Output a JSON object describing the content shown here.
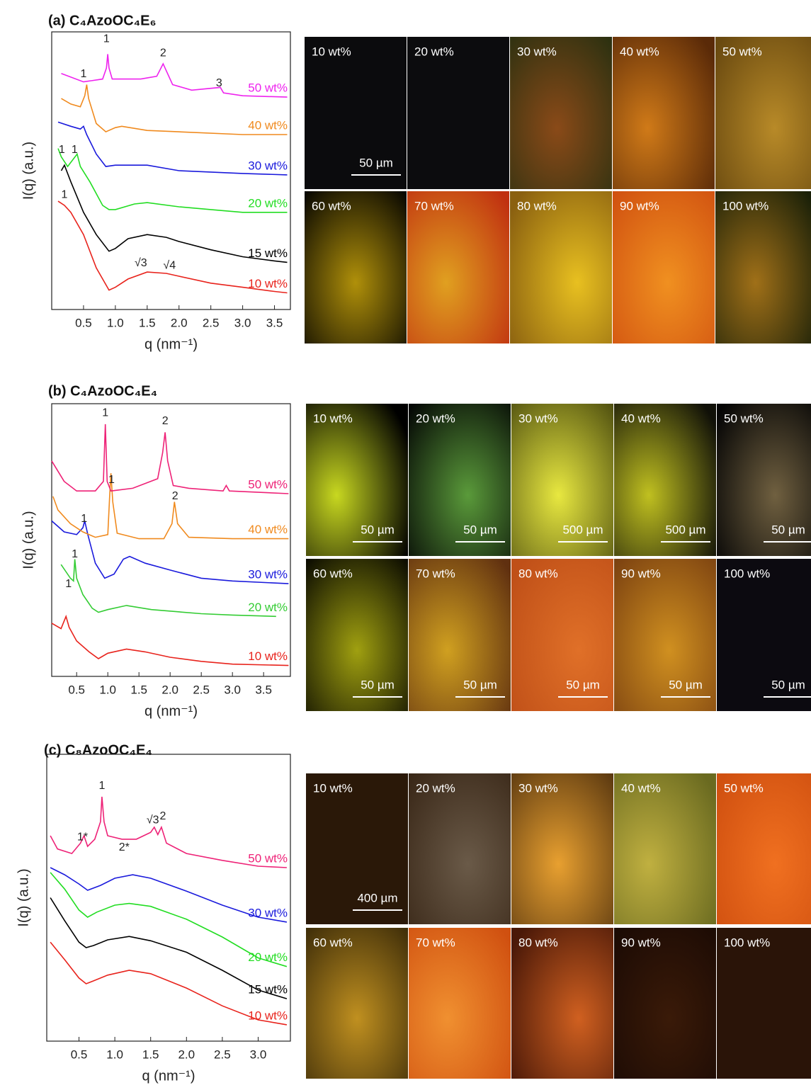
{
  "chart_data": [
    {
      "type": "line",
      "title": "(a) C₄AzoOC₄E₆",
      "x_label": "q (nm⁻¹)",
      "y_label": "I(q) (a.u.)",
      "xlim": [
        0,
        3.75
      ],
      "ylim": [
        0,
        100
      ],
      "xticks": [
        0.5,
        {
          "value": 1,
          "label": "1.0"
        },
        1.5,
        {
          "value": 2,
          "label": "2.0"
        },
        2.5,
        {
          "value": 3,
          "label": "3.0"
        },
        3.5
      ],
      "series": [
        {
          "name": "10 wt%",
          "color": "#e8231c",
          "x": [
            0.1,
            0.2,
            0.3,
            0.5,
            0.7,
            0.9,
            1.0,
            1.2,
            1.5,
            1.8,
            2.0,
            2.5,
            3.0,
            3.5,
            3.7
          ],
          "values": [
            39,
            37.5,
            35,
            27,
            15,
            7,
            8,
            11,
            13.5,
            13,
            12,
            9.5,
            8,
            6.5,
            6
          ]
        },
        {
          "name": "15 wt%",
          "color": "#000000",
          "x": [
            0.15,
            0.2,
            0.3,
            0.5,
            0.7,
            0.9,
            1.0,
            1.2,
            1.5,
            1.8,
            2.0,
            2.5,
            3.0,
            3.5,
            3.7
          ],
          "values": [
            50,
            52,
            46,
            35,
            27,
            21,
            22,
            25.5,
            27,
            26,
            24.5,
            21.5,
            19,
            17.5,
            17
          ]
        },
        {
          "name": "20 wt%",
          "color": "#22dd22",
          "x": [
            0.1,
            0.15,
            0.25,
            0.4,
            0.45,
            0.6,
            0.8,
            0.9,
            1.0,
            1.3,
            1.5,
            2.0,
            2.5,
            3.0,
            3.7
          ],
          "values": [
            58,
            55,
            51.5,
            56,
            51.5,
            46,
            37.5,
            36,
            36,
            38,
            38.5,
            37,
            36,
            35,
            35
          ]
        },
        {
          "name": "30 wt%",
          "color": "#1a1adc",
          "x": [
            0.1,
            0.3,
            0.45,
            0.5,
            0.55,
            0.7,
            0.85,
            1.0,
            1.5,
            2.0,
            3.0,
            3.7
          ],
          "values": [
            67.5,
            66,
            65,
            66,
            63,
            56,
            51.5,
            52,
            52,
            50,
            49,
            48.5
          ]
        },
        {
          "name": "40 wt%",
          "color": "#f08a1e",
          "x": [
            0.15,
            0.3,
            0.45,
            0.52,
            0.55,
            0.58,
            0.7,
            0.85,
            1.0,
            1.1,
            1.5,
            2.0,
            3.0,
            3.7
          ],
          "values": [
            76,
            74,
            73,
            77,
            81,
            76,
            67,
            64,
            65.5,
            66,
            64.5,
            64,
            63,
            63
          ]
        },
        {
          "name": "50 wt%",
          "color": "#ee22ee",
          "x": [
            0.15,
            0.5,
            0.8,
            0.86,
            0.88,
            0.9,
            0.95,
            1.4,
            1.65,
            1.75,
            1.8,
            1.9,
            2.2,
            2.65,
            2.7,
            3.0,
            3.7
          ],
          "values": [
            85,
            82,
            83,
            87,
            92,
            87,
            83,
            83,
            84,
            88.5,
            86,
            81,
            79,
            80,
            78,
            77,
            76.5
          ]
        }
      ],
      "annotations": [
        {
          "text": "1",
          "x": 0.86,
          "y": 97.4
        },
        {
          "text": "2",
          "x": 1.75,
          "y": 92.3
        },
        {
          "text": "3",
          "x": 2.63,
          "y": 81.4
        },
        {
          "text": "1",
          "x": 0.5,
          "y": 84.7
        },
        {
          "text": "1",
          "x": 0.16,
          "y": 57.4
        },
        {
          "text": "1",
          "x": 0.36,
          "y": 57.4
        },
        {
          "text": "1",
          "x": 0.2,
          "y": 41.3
        },
        {
          "text": "√3",
          "x": 1.4,
          "y": 16.6
        },
        {
          "text": "√4",
          "x": 1.85,
          "y": 15.8
        }
      ]
    },
    {
      "type": "line",
      "title": "(b) C₄AzoOC₄E₄",
      "x_label": "q (nm⁻¹)",
      "y_label": "I(q) (a.u.)",
      "xlim": [
        0.1,
        3.93
      ],
      "ylim": [
        0,
        100
      ],
      "xticks": [
        0.5,
        {
          "value": 1,
          "label": "1.0"
        },
        1.5,
        {
          "value": 2,
          "label": "2.0"
        },
        2.5,
        {
          "value": 3,
          "label": "3.0"
        },
        3.5
      ],
      "series": [
        {
          "name": "10 wt%",
          "color": "#e8231c",
          "x": [
            0.1,
            0.25,
            0.33,
            0.38,
            0.5,
            0.7,
            0.85,
            1.0,
            1.3,
            1.6,
            2.0,
            2.5,
            3.0,
            3.9
          ],
          "values": [
            19.5,
            17.5,
            22,
            18,
            13,
            9,
            6.5,
            8.5,
            10,
            9,
            7,
            5.5,
            4.5,
            4
          ]
        },
        {
          "name": "20 wt%",
          "color": "#33cc33",
          "x": [
            0.25,
            0.4,
            0.45,
            0.47,
            0.5,
            0.6,
            0.75,
            0.85,
            1.0,
            1.3,
            1.7,
            2.5,
            3.0,
            3.7
          ],
          "values": [
            41,
            36,
            35,
            43,
            36,
            30,
            25,
            23.5,
            24.5,
            26,
            24.5,
            23,
            22.5,
            22
          ]
        },
        {
          "name": "30 wt%",
          "color": "#1a1adc",
          "x": [
            0.1,
            0.3,
            0.5,
            0.6,
            0.63,
            0.68,
            0.8,
            0.95,
            1.1,
            1.25,
            1.35,
            1.6,
            2.0,
            2.5,
            3.0,
            3.9
          ],
          "values": [
            57,
            53,
            52,
            54.5,
            57,
            52,
            41.5,
            36,
            37.5,
            43,
            44,
            41.5,
            39,
            36,
            35,
            34
          ]
        },
        {
          "name": "40 wt%",
          "color": "#f08a1e",
          "x": [
            0.12,
            0.2,
            0.4,
            0.6,
            0.8,
            1.0,
            1.03,
            1.05,
            1.08,
            1.15,
            1.5,
            1.9,
            2.03,
            2.07,
            2.12,
            2.3,
            3.0,
            3.9
          ],
          "values": [
            66,
            61,
            56,
            53,
            51,
            52,
            66,
            74.5,
            64,
            52.5,
            50.5,
            50.5,
            56,
            64,
            56,
            51,
            50.5,
            50.5
          ]
        },
        {
          "name": "50 wt%",
          "color": "#ee2277",
          "x": [
            0.1,
            0.3,
            0.5,
            0.8,
            0.93,
            0.96,
            0.99,
            1.05,
            1.4,
            1.8,
            1.88,
            1.92,
            1.96,
            2.05,
            2.3,
            2.85,
            2.9,
            2.95,
            3.9
          ],
          "values": [
            79,
            71.5,
            68,
            68,
            71.5,
            92.5,
            71.5,
            68,
            69,
            72.5,
            82,
            89.5,
            79,
            70,
            69,
            68,
            70,
            68,
            67
          ]
        }
      ],
      "annotations": [
        {
          "text": "1",
          "x": 0.96,
          "y": 96.6
        },
        {
          "text": "2",
          "x": 1.92,
          "y": 93.5
        },
        {
          "text": "1",
          "x": 1.06,
          "y": 72
        },
        {
          "text": "2",
          "x": 2.08,
          "y": 66
        },
        {
          "text": "1",
          "x": 0.62,
          "y": 57.7
        },
        {
          "text": "1",
          "x": 0.47,
          "y": 44.7
        },
        {
          "text": "1",
          "x": 0.37,
          "y": 33.8
        }
      ]
    },
    {
      "type": "line",
      "title": "(c) C₈AzoOC₄E₄",
      "x_label": "q (nm⁻¹)",
      "y_label": "I(q) (a.u.)",
      "xlim": [
        0.05,
        3.45
      ],
      "ylim": [
        0,
        100
      ],
      "xticks": [
        0.5,
        {
          "value": 1,
          "label": "1.0"
        },
        1.5,
        {
          "value": 2,
          "label": "2.0"
        },
        2.5,
        {
          "value": 3,
          "label": "3.0"
        }
      ],
      "series": [
        {
          "name": "10 wt%",
          "color": "#e8231c",
          "x": [
            0.1,
            0.3,
            0.5,
            0.6,
            0.7,
            0.9,
            1.2,
            1.5,
            2.0,
            2.5,
            3.0,
            3.4
          ],
          "values": [
            34.5,
            28.4,
            22,
            20,
            21,
            23,
            24.7,
            23.5,
            18.5,
            12.3,
            7.4,
            5.7
          ]
        },
        {
          "name": "15 wt%",
          "color": "#000000",
          "x": [
            0.1,
            0.3,
            0.5,
            0.6,
            0.7,
            0.9,
            1.2,
            1.5,
            2.0,
            2.5,
            3.0,
            3.4
          ],
          "values": [
            50,
            42,
            34.5,
            32.6,
            33.3,
            35.3,
            36.5,
            35,
            31,
            24.7,
            17.8,
            14.8
          ]
        },
        {
          "name": "20 wt%",
          "color": "#22dd22",
          "x": [
            0.1,
            0.3,
            0.5,
            0.62,
            0.75,
            1.0,
            1.2,
            1.5,
            2.0,
            2.5,
            3.0,
            3.4
          ],
          "values": [
            58.8,
            53,
            45.7,
            43.2,
            45,
            47.4,
            48,
            47,
            42.5,
            36.3,
            29,
            26
          ]
        },
        {
          "name": "30 wt%",
          "color": "#1a1adc",
          "x": [
            0.1,
            0.3,
            0.5,
            0.62,
            0.8,
            1.0,
            1.25,
            1.5,
            2.0,
            2.5,
            3.0,
            3.4
          ],
          "values": [
            60.5,
            58,
            54.8,
            52.6,
            54.3,
            56.8,
            58,
            56.8,
            52.3,
            47.4,
            43.2,
            41.5
          ]
        },
        {
          "name": "50 wt%",
          "color": "#ee2277",
          "x": [
            0.1,
            0.2,
            0.4,
            0.52,
            0.57,
            0.62,
            0.72,
            0.8,
            0.82,
            0.85,
            0.9,
            1.1,
            1.3,
            1.5,
            1.55,
            1.6,
            1.65,
            1.72,
            2.0,
            2.5,
            3.0,
            3.4
          ],
          "values": [
            71.6,
            67,
            65.4,
            69,
            71.6,
            67.9,
            70.4,
            76.5,
            85.2,
            76.5,
            71.6,
            70.4,
            70.4,
            72.8,
            74.6,
            72,
            74.6,
            69,
            65.4,
            63,
            61,
            60.5
          ]
        }
      ],
      "annotations": [
        {
          "text": "1*",
          "x": 0.55,
          "y": 71.1
        },
        {
          "text": "1",
          "x": 0.82,
          "y": 88.9
        },
        {
          "text": "2*",
          "x": 1.13,
          "y": 67.4
        },
        {
          "text": "√3",
          "x": 1.53,
          "y": 77
        },
        {
          "text": "2",
          "x": 1.67,
          "y": 78.3
        }
      ]
    }
  ],
  "micrographs": [
    {
      "tiles": [
        {
          "label": "10 wt%",
          "scale_bar": "50 µm"
        },
        {
          "label": "20 wt%"
        },
        {
          "label": "30 wt%"
        },
        {
          "label": "40 wt%"
        },
        {
          "label": "50 wt%"
        },
        {
          "label": "60 wt%"
        },
        {
          "label": "70 wt%"
        },
        {
          "label": "80 wt%"
        },
        {
          "label": "90 wt%"
        },
        {
          "label": "100 wt%"
        }
      ]
    },
    {
      "tiles": [
        {
          "label": "10 wt%",
          "scale_bar": "50 µm"
        },
        {
          "label": "20 wt%",
          "scale_bar": "50 µm"
        },
        {
          "label": "30 wt%",
          "scale_bar": "500 µm"
        },
        {
          "label": "40 wt%",
          "scale_bar": "500 µm"
        },
        {
          "label": "50 wt%",
          "scale_bar": "50 µm"
        },
        {
          "label": "60 wt%",
          "scale_bar": "50 µm"
        },
        {
          "label": "70 wt%",
          "scale_bar": "50 µm"
        },
        {
          "label": "80 wt%",
          "scale_bar": "50 µm"
        },
        {
          "label": "90 wt%",
          "scale_bar": "50 µm"
        },
        {
          "label": "100 wt%",
          "scale_bar": "50 µm"
        }
      ]
    },
    {
      "tiles": [
        {
          "label": "10 wt%",
          "scale_bar": "400 µm"
        },
        {
          "label": "20 wt%"
        },
        {
          "label": "30 wt%"
        },
        {
          "label": "40 wt%"
        },
        {
          "label": "50 wt%"
        },
        {
          "label": "60 wt%"
        },
        {
          "label": "70 wt%"
        },
        {
          "label": "80 wt%"
        },
        {
          "label": "90 wt%"
        },
        {
          "label": "100 wt%"
        }
      ]
    }
  ]
}
